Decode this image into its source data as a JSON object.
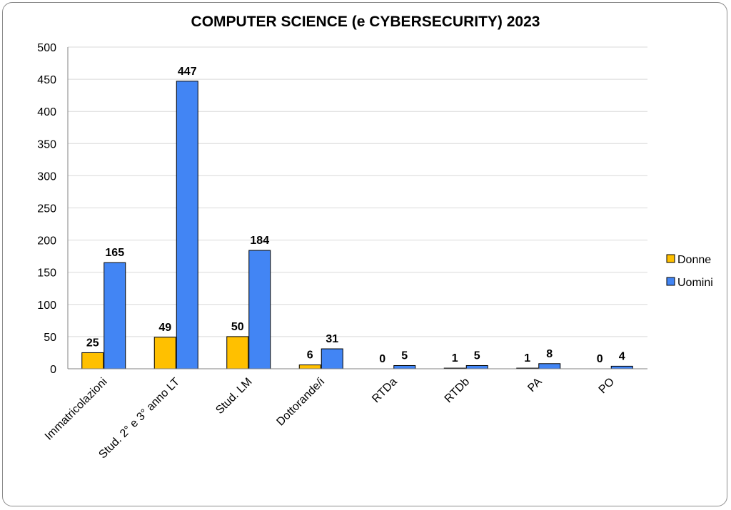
{
  "chart_data": {
    "type": "bar",
    "title": "COMPUTER SCIENCE (e CYBERSECURITY) 2023",
    "categories": [
      "Immatricolazioni",
      "Stud. 2° e 3° anno LT",
      "Stud. LM",
      "Dottorande/i",
      "RTDa",
      "RTDb",
      "PA",
      "PO"
    ],
    "series": [
      {
        "name": "Donne",
        "color": "#FFC000",
        "values": [
          25,
          49,
          50,
          6,
          0,
          1,
          1,
          0
        ]
      },
      {
        "name": "Uomini",
        "color": "#4285F4",
        "values": [
          165,
          447,
          184,
          31,
          5,
          5,
          8,
          4
        ]
      }
    ],
    "yticks": [
      "0",
      "50",
      "100",
      "150",
      "200",
      "250",
      "300",
      "350",
      "400",
      "450",
      "500"
    ],
    "ylim": [
      0,
      500
    ],
    "grid": true,
    "legend": "right",
    "data_labels": true
  }
}
